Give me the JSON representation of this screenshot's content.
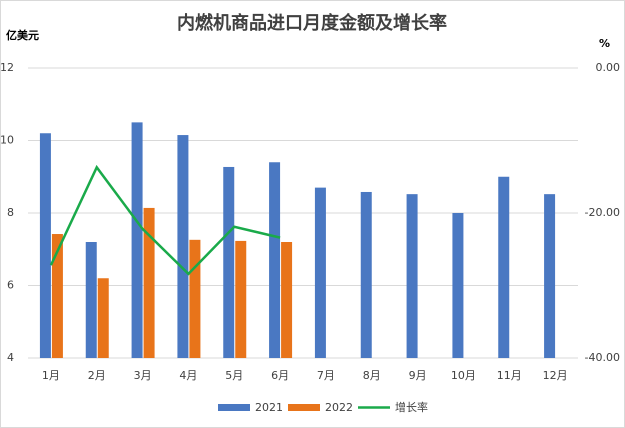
{
  "chart_data": {
    "type": "bar-line",
    "title": "内燃机商品进口月度金额及增长率",
    "y_label": "亿美元",
    "y2_label": "%",
    "categories": [
      "1月",
      "2月",
      "3月",
      "4月",
      "5月",
      "6月",
      "7月",
      "8月",
      "9月",
      "10月",
      "11月",
      "12月"
    ],
    "series": [
      {
        "name": "2021",
        "type": "bar",
        "color": "#4a78c2",
        "values": [
          10.2,
          7.2,
          10.5,
          10.15,
          9.27,
          9.4,
          8.7,
          8.58,
          8.52,
          8.0,
          9.0,
          8.52
        ]
      },
      {
        "name": "2022",
        "type": "bar",
        "color": "#e8741a",
        "values": [
          7.42,
          6.2,
          8.14,
          7.26,
          7.23,
          7.2,
          null,
          null,
          null,
          null,
          null,
          null
        ]
      },
      {
        "name": "增长率",
        "type": "line",
        "axis": "y2",
        "color": "#1aaa4a",
        "values": [
          -27.2,
          -13.7,
          -22.2,
          -28.4,
          -21.9,
          -23.4,
          null,
          null,
          null,
          null,
          null,
          null
        ]
      }
    ],
    "ylim": [
      4,
      12
    ],
    "yticks": [
      4,
      6,
      8,
      10,
      12
    ],
    "y2lim": [
      -40,
      0
    ],
    "y2ticks": [
      {
        "value": -40,
        "label": "-40.00"
      },
      {
        "value": -20,
        "label": "-20.00"
      },
      {
        "value": 0,
        "label": "0.00"
      }
    ],
    "grid": true,
    "legend": "bottom"
  }
}
